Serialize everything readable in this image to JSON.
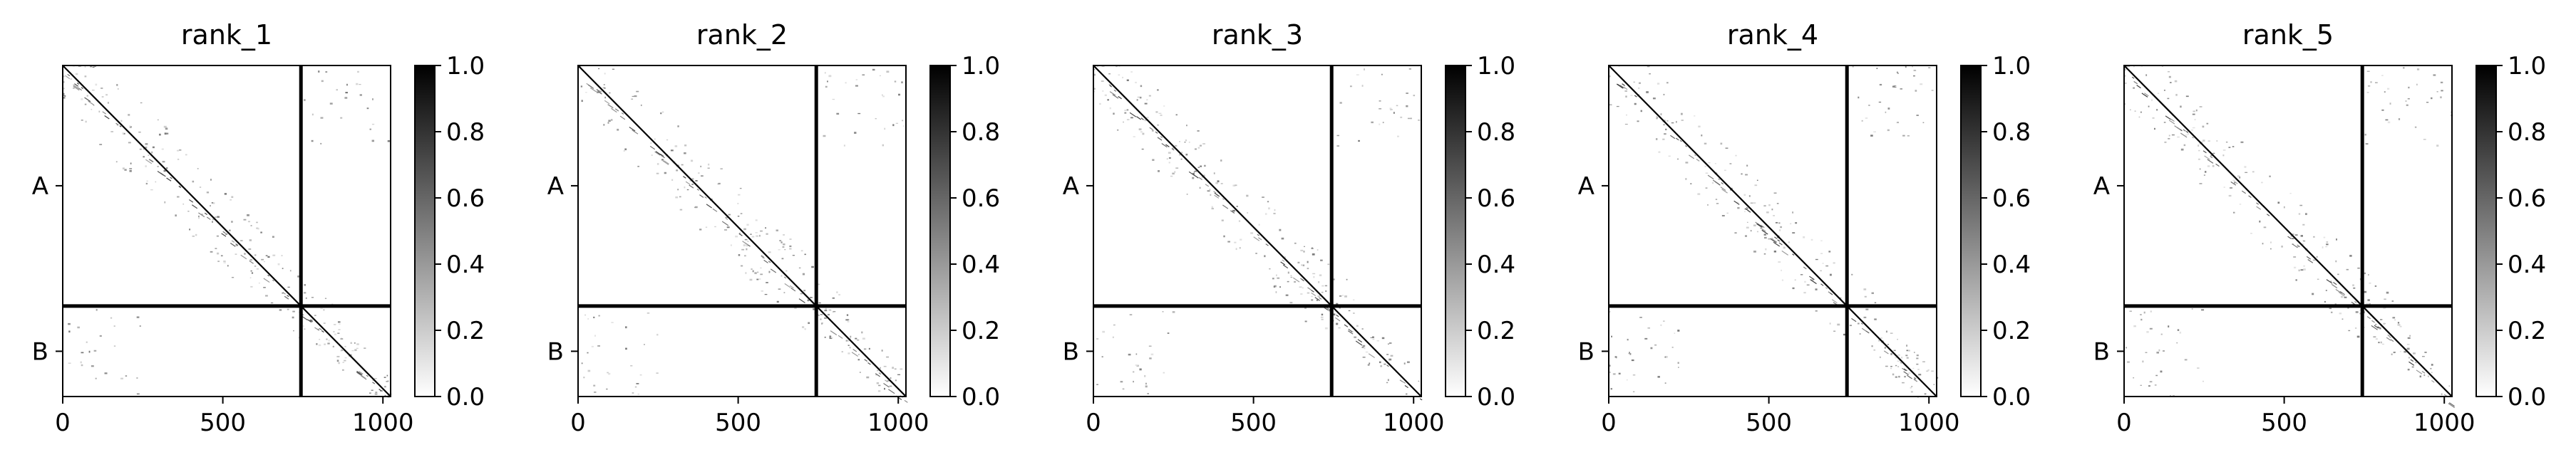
{
  "chart_data": [
    {
      "type": "heatmap",
      "title": "rank_1",
      "matrix_size": 1024,
      "chain_boundary": 744,
      "x_ticks": [
        0,
        500,
        1000
      ],
      "x_tick_labels": [
        "0",
        "500",
        "1000"
      ],
      "y_tick_labels": [
        "A",
        "B"
      ],
      "y_tick_positions": [
        372,
        884
      ],
      "value_range": [
        0.0,
        1.0
      ],
      "colorbar_ticks": [
        0.0,
        0.2,
        0.4,
        0.6,
        0.8,
        1.0
      ],
      "colorbar_tick_labels": [
        "0.0",
        "0.2",
        "0.4",
        "0.6",
        "0.8",
        "1.0"
      ],
      "colormap": [
        "#ffffff",
        "#000000"
      ]
    },
    {
      "type": "heatmap",
      "title": "rank_2",
      "matrix_size": 1024,
      "chain_boundary": 744,
      "x_ticks": [
        0,
        500,
        1000
      ],
      "x_tick_labels": [
        "0",
        "500",
        "1000"
      ],
      "y_tick_labels": [
        "A",
        "B"
      ],
      "y_tick_positions": [
        372,
        884
      ],
      "value_range": [
        0.0,
        1.0
      ],
      "colorbar_ticks": [
        0.0,
        0.2,
        0.4,
        0.6,
        0.8,
        1.0
      ],
      "colorbar_tick_labels": [
        "0.0",
        "0.2",
        "0.4",
        "0.6",
        "0.8",
        "1.0"
      ],
      "colormap": [
        "#ffffff",
        "#000000"
      ]
    },
    {
      "type": "heatmap",
      "title": "rank_3",
      "matrix_size": 1024,
      "chain_boundary": 744,
      "x_ticks": [
        0,
        500,
        1000
      ],
      "x_tick_labels": [
        "0",
        "500",
        "1000"
      ],
      "y_tick_labels": [
        "A",
        "B"
      ],
      "y_tick_positions": [
        372,
        884
      ],
      "value_range": [
        0.0,
        1.0
      ],
      "colorbar_ticks": [
        0.0,
        0.2,
        0.4,
        0.6,
        0.8,
        1.0
      ],
      "colorbar_tick_labels": [
        "0.0",
        "0.2",
        "0.4",
        "0.6",
        "0.8",
        "1.0"
      ],
      "colormap": [
        "#ffffff",
        "#000000"
      ]
    },
    {
      "type": "heatmap",
      "title": "rank_4",
      "matrix_size": 1024,
      "chain_boundary": 744,
      "x_ticks": [
        0,
        500,
        1000
      ],
      "x_tick_labels": [
        "0",
        "500",
        "1000"
      ],
      "y_tick_labels": [
        "A",
        "B"
      ],
      "y_tick_positions": [
        372,
        884
      ],
      "value_range": [
        0.0,
        1.0
      ],
      "colorbar_ticks": [
        0.0,
        0.2,
        0.4,
        0.6,
        0.8,
        1.0
      ],
      "colorbar_tick_labels": [
        "0.0",
        "0.2",
        "0.4",
        "0.6",
        "0.8",
        "1.0"
      ],
      "colormap": [
        "#ffffff",
        "#000000"
      ]
    },
    {
      "type": "heatmap",
      "title": "rank_5",
      "matrix_size": 1024,
      "chain_boundary": 744,
      "x_ticks": [
        0,
        500,
        1000
      ],
      "x_tick_labels": [
        "0",
        "500",
        "1000"
      ],
      "y_tick_labels": [
        "A",
        "B"
      ],
      "y_tick_positions": [
        372,
        884
      ],
      "value_range": [
        0.0,
        1.0
      ],
      "colorbar_ticks": [
        0.0,
        0.2,
        0.4,
        0.6,
        0.8,
        1.0
      ],
      "colorbar_tick_labels": [
        "0.0",
        "0.2",
        "0.4",
        "0.6",
        "0.8",
        "1.0"
      ],
      "colormap": [
        "#ffffff",
        "#000000"
      ]
    }
  ]
}
